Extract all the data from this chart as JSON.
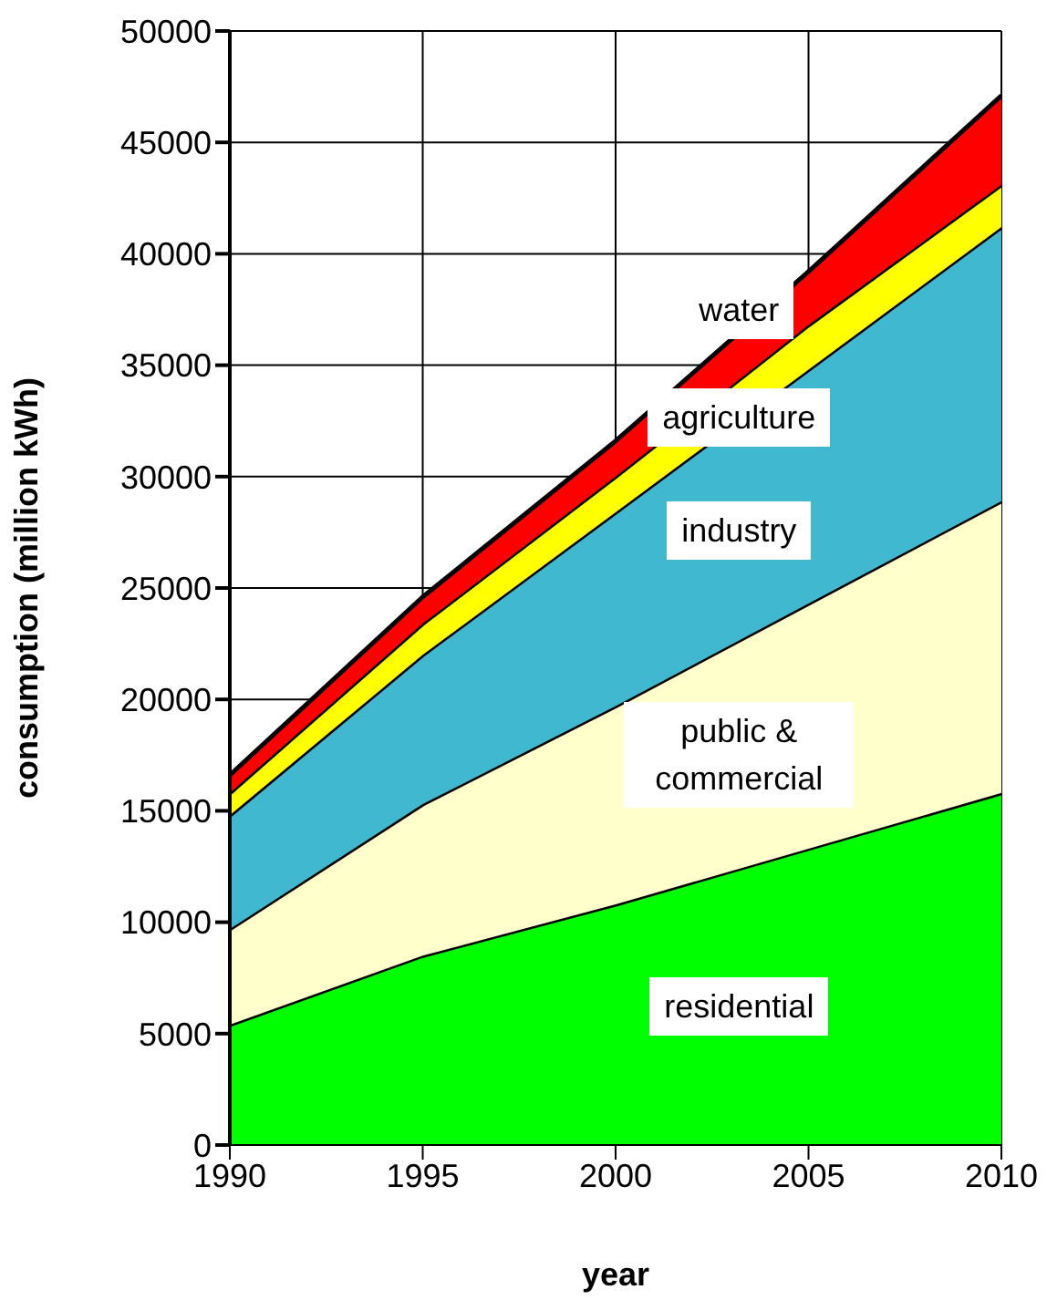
{
  "chart_data": {
    "type": "area",
    "stacked": true,
    "xlabel": "year",
    "ylabel": "consumption (million kWh)",
    "x": [
      1990,
      1995,
      2000,
      2005,
      2010
    ],
    "xlim": [
      1990,
      2010
    ],
    "xticks": [
      1990,
      1995,
      2000,
      2005,
      2010
    ],
    "ylim": [
      0,
      50000
    ],
    "yticks": [
      0,
      5000,
      10000,
      15000,
      20000,
      25000,
      30000,
      35000,
      40000,
      45000,
      50000
    ],
    "grid": true,
    "legend": false,
    "series": [
      {
        "name": "residential",
        "color": "#00ff00",
        "values": [
          5400,
          8500,
          10800,
          13300,
          15800
        ]
      },
      {
        "name": "public & commercial",
        "color": "#ffffcc",
        "values": [
          4300,
          6800,
          8900,
          11000,
          13100
        ]
      },
      {
        "name": "industry",
        "color": "#40b8d0",
        "values": [
          5100,
          6700,
          8700,
          10500,
          12300
        ]
      },
      {
        "name": "agriculture",
        "color": "#ffff00",
        "values": [
          1000,
          1400,
          1600,
          2000,
          1900
        ]
      },
      {
        "name": "water",
        "color": "#ff0000",
        "values": [
          800,
          1200,
          1600,
          2400,
          4000
        ]
      }
    ]
  }
}
